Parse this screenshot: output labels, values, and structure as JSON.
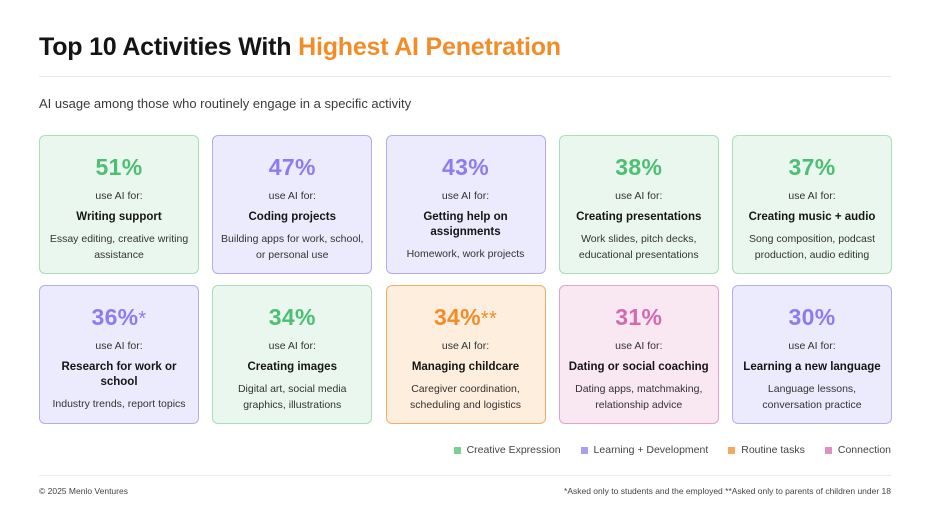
{
  "header": {
    "title_main": "Top 10 Activities With ",
    "title_accent": "Highest AI Penetration",
    "subtitle": "AI usage among those who routinely engage in a specific activity"
  },
  "colors": {
    "creative": "#4cbf72",
    "learning": "#8c7cf0",
    "routine": "#f28c28",
    "connection": "#d36ab0",
    "title_accent": "#f28c28"
  },
  "chart_data": {
    "type": "table",
    "title": "Top 10 Activities With Highest AI Penetration",
    "subtitle": "AI usage among those who routinely engage in a specific activity",
    "prefix_label": "use AI for:",
    "cards": [
      {
        "percent": "51%",
        "value": 51,
        "mark": "",
        "activity": "Writing support",
        "description": "Essay editing, creative writing assistance",
        "category": "creative"
      },
      {
        "percent": "47%",
        "value": 47,
        "mark": "",
        "activity": "Coding projects",
        "description": "Building apps for work, school, or personal use",
        "category": "learning"
      },
      {
        "percent": "43%",
        "value": 43,
        "mark": "",
        "activity": "Getting help on assignments",
        "description": "Homework, work projects",
        "category": "learning"
      },
      {
        "percent": "38%",
        "value": 38,
        "mark": "",
        "activity": "Creating presentations",
        "description": "Work slides, pitch decks, educational presentations",
        "category": "creative"
      },
      {
        "percent": "37%",
        "value": 37,
        "mark": "",
        "activity": "Creating music + audio",
        "description": "Song composition, podcast production, audio editing",
        "category": "creative"
      },
      {
        "percent": "36%",
        "value": 36,
        "mark": "*",
        "activity": "Research for work or school",
        "description": "Industry trends, report topics",
        "category": "learning"
      },
      {
        "percent": "34%",
        "value": 34,
        "mark": "",
        "activity": "Creating images",
        "description": "Digital art, social media graphics, illustrations",
        "category": "creative"
      },
      {
        "percent": "34%",
        "value": 34,
        "mark": "**",
        "activity": "Managing childcare",
        "description": "Caregiver coordination, scheduling and logistics",
        "category": "routine"
      },
      {
        "percent": "31%",
        "value": 31,
        "mark": "",
        "activity": "Dating or social coaching",
        "description": "Dating apps, matchmaking, relationship advice",
        "category": "connection"
      },
      {
        "percent": "30%",
        "value": 30,
        "mark": "",
        "activity": "Learning a new language",
        "description": "Language lessons, conversation practice",
        "category": "learning"
      }
    ],
    "legend": [
      {
        "key": "creative",
        "label": "Creative Expression"
      },
      {
        "key": "learning",
        "label": "Learning + Development"
      },
      {
        "key": "routine",
        "label": "Routine tasks"
      },
      {
        "key": "connection",
        "label": "Connection"
      }
    ]
  },
  "footer": {
    "copyright": "© 2025 Menlo Ventures",
    "notes": "*Asked only to students and the employed   **Asked only to parents of children under 18"
  }
}
